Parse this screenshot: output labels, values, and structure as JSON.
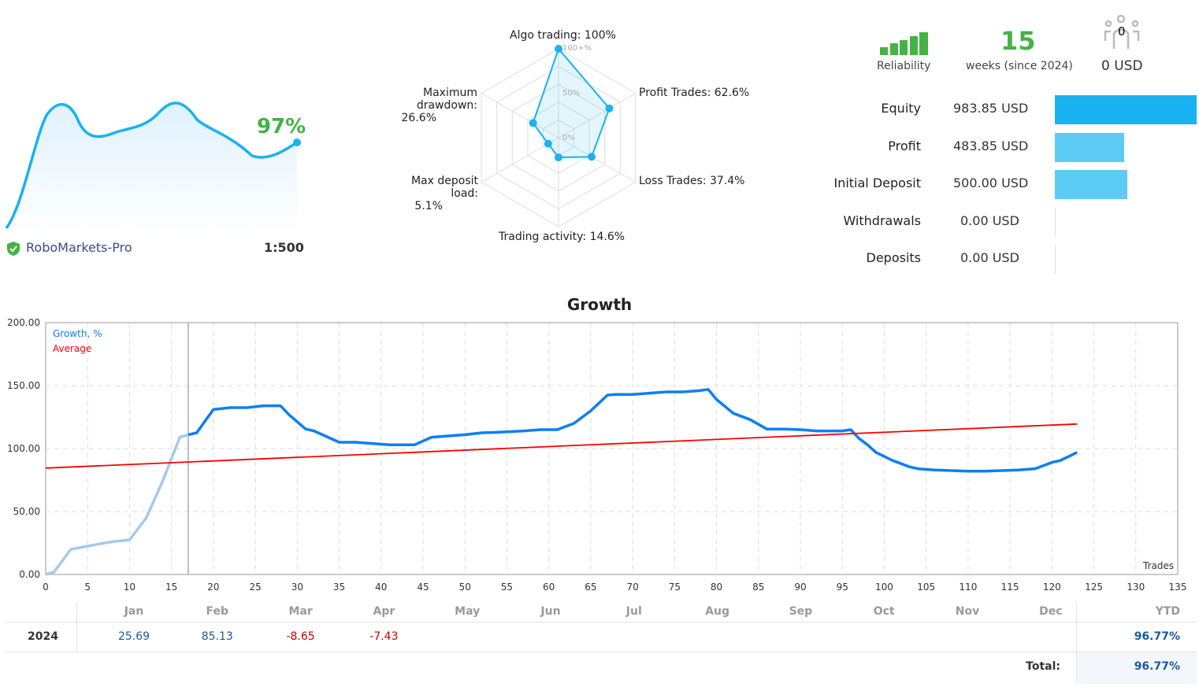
{
  "mini": {
    "percent": "97%",
    "server": "RoboMarkets-Pro",
    "leverage": "1:500",
    "shield_icon": "shield-check-icon",
    "green": "#43b343",
    "blue": "#1ab2f0"
  },
  "radar": {
    "axes": [
      {
        "label": "Algo trading: 100%",
        "value": 100
      },
      {
        "label": "Profit Trades: 62.6%",
        "value": 62.6
      },
      {
        "label": "Loss Trades: 37.4%",
        "value": 37.4
      },
      {
        "label": "Trading activity: 14.6%",
        "value": 14.6
      },
      {
        "label": "Max deposit load:",
        "label2": "5.1%",
        "value": 5.1
      },
      {
        "label": "Maximum drawdown:",
        "label2": "26.6%",
        "value": 26.6
      }
    ],
    "rings": [
      "100+%",
      "50%",
      "0%"
    ]
  },
  "header": {
    "reliability": "Reliability",
    "weeks": "15",
    "weeks_label": "weeks (since 2024)",
    "subscribers": "0",
    "subscribers_usd": "0 USD"
  },
  "stats": [
    {
      "label": "Equity",
      "value": "983.85 USD",
      "fraction": 1.0,
      "color": "#1ab2f0"
    },
    {
      "label": "Profit",
      "value": "483.85 USD",
      "fraction": 0.49,
      "color": "#5ccbf5"
    },
    {
      "label": "Initial Deposit",
      "value": "500.00 USD",
      "fraction": 0.51,
      "color": "#5ccbf5"
    },
    {
      "label": "Withdrawals",
      "value": "0.00 USD",
      "fraction": 0,
      "color": "#5ccbf5"
    },
    {
      "label": "Deposits",
      "value": "0.00 USD",
      "fraction": 0,
      "color": "#5ccbf5"
    }
  ],
  "chart_data": {
    "type": "line",
    "title": "Growth",
    "xlabel": "Trades",
    "xlim": [
      0,
      135
    ],
    "ylim": [
      0,
      200
    ],
    "xticks": [
      0,
      5,
      10,
      15,
      20,
      25,
      30,
      35,
      40,
      45,
      50,
      55,
      60,
      65,
      70,
      75,
      80,
      85,
      90,
      95,
      100,
      105,
      110,
      115,
      120,
      125,
      130,
      135
    ],
    "yticks": [
      "0.00",
      "50.00",
      "100.00",
      "150.00",
      "200.00"
    ],
    "grid": true,
    "legend": "top-left",
    "highlight_before_x": 17,
    "series": [
      {
        "name": "Growth, %",
        "color": "#0a7ff5",
        "x": [
          0,
          1,
          3,
          5,
          7,
          8,
          10,
          12,
          14,
          16,
          17,
          18,
          20,
          22,
          24,
          26,
          28,
          29,
          31,
          32,
          33,
          35,
          37,
          39,
          41,
          44,
          46,
          48,
          50,
          52,
          54,
          57,
          59,
          61,
          63,
          65,
          67,
          68,
          70,
          72,
          74,
          76,
          78,
          79,
          80,
          82,
          84,
          86,
          88,
          90,
          92,
          94,
          95,
          96,
          97,
          98,
          99,
          101,
          103,
          104,
          106,
          108,
          110,
          112,
          114,
          116,
          118,
          120,
          121,
          123
        ],
        "y": [
          0,
          2,
          20,
          22.5,
          25,
          26,
          27.5,
          45,
          75,
          109,
          111,
          112.5,
          131,
          132.5,
          132.5,
          134,
          134,
          127,
          115.5,
          114,
          111,
          105,
          105,
          104,
          103,
          103,
          109,
          110,
          111,
          112.5,
          113,
          114,
          115,
          115,
          120,
          130,
          142.5,
          143,
          143,
          144,
          145,
          145,
          146,
          147,
          139,
          128,
          123,
          115.5,
          115.5,
          115,
          114,
          114,
          114,
          115,
          108,
          103,
          97,
          90.5,
          85.5,
          84,
          83,
          82.5,
          82,
          82,
          82.5,
          83,
          84,
          89,
          90.5,
          97
        ]
      },
      {
        "name": "Average",
        "color": "#ff0000",
        "x": [
          0,
          123
        ],
        "y": [
          84.5,
          119.5
        ]
      }
    ]
  },
  "table": {
    "months": [
      "Jan",
      "Feb",
      "Mar",
      "Apr",
      "May",
      "Jun",
      "Jul",
      "Aug",
      "Sep",
      "Oct",
      "Nov",
      "Dec"
    ],
    "ytd_label": "YTD",
    "year": "2024",
    "values": [
      "25.69",
      "85.13",
      "-8.65",
      "-7.43",
      "",
      "",
      "",
      "",
      "",
      "",
      "",
      ""
    ],
    "ytd": "96.77%",
    "total_label": "Total:",
    "total": "96.77%"
  }
}
